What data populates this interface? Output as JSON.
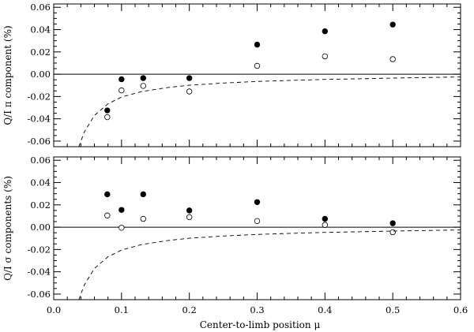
{
  "chart_data": [
    {
      "type": "scatter",
      "ylabel": "Q/I π component (%)",
      "xlim": [
        0.0,
        0.6
      ],
      "ylim": [
        -0.065,
        0.063
      ],
      "yticks": [
        "0.06",
        "0.04",
        "0.02",
        "0.00",
        "-0.02",
        "-0.04",
        "-0.06"
      ],
      "reference_line": 0.0,
      "series": [
        {
          "marker": "filled-circle",
          "x": [
            0.079,
            0.1,
            0.132,
            0.2,
            0.3,
            0.4,
            0.5
          ],
          "y": [
            -0.0325,
            -0.0045,
            -0.0035,
            -0.0035,
            0.0265,
            0.0385,
            0.0445
          ]
        },
        {
          "marker": "open-circle",
          "x": [
            0.079,
            0.1,
            0.132,
            0.2,
            0.3,
            0.4,
            0.5
          ],
          "y": [
            -0.0385,
            -0.0145,
            -0.0105,
            -0.0155,
            0.0075,
            0.016,
            0.0135
          ]
        },
        {
          "marker": "dashed-line",
          "x": [
            0.037,
            0.045,
            0.06,
            0.08,
            0.1,
            0.13,
            0.17,
            0.2,
            0.25,
            0.3,
            0.35,
            0.4,
            0.45,
            0.5,
            0.55,
            0.6
          ],
          "y": [
            -0.065,
            -0.052,
            -0.037,
            -0.0265,
            -0.0205,
            -0.0155,
            -0.0118,
            -0.0099,
            -0.0079,
            -0.0065,
            -0.0055,
            -0.0047,
            -0.0041,
            -0.0035,
            -0.003,
            -0.0025
          ]
        }
      ]
    },
    {
      "type": "scatter",
      "ylabel": "Q/I σ components (%)",
      "xlabel": "Center-to-limb position μ",
      "xlim": [
        0.0,
        0.6
      ],
      "ylim": [
        -0.065,
        0.063
      ],
      "xticks": [
        "0.0",
        "0.1",
        "0.2",
        "0.3",
        "0.4",
        "0.5",
        "0.6"
      ],
      "yticks": [
        "0.06",
        "0.04",
        "0.02",
        "0.00",
        "-0.02",
        "-0.04",
        "-0.06"
      ],
      "reference_line": 0.0,
      "series": [
        {
          "marker": "filled-circle",
          "x": [
            0.079,
            0.1,
            0.132,
            0.2,
            0.3,
            0.4,
            0.5
          ],
          "y": [
            0.0295,
            0.0155,
            0.0295,
            0.015,
            0.0225,
            0.0075,
            0.0035
          ]
        },
        {
          "marker": "open-circle",
          "x": [
            0.079,
            0.1,
            0.132,
            0.2,
            0.3,
            0.4,
            0.5
          ],
          "y": [
            0.0105,
            -0.0005,
            0.0075,
            0.009,
            0.0055,
            0.002,
            -0.0045
          ]
        },
        {
          "marker": "dashed-line",
          "x": [
            0.037,
            0.045,
            0.06,
            0.08,
            0.1,
            0.13,
            0.17,
            0.2,
            0.25,
            0.3,
            0.35,
            0.4,
            0.45,
            0.5,
            0.55,
            0.6
          ],
          "y": [
            -0.065,
            -0.052,
            -0.037,
            -0.0265,
            -0.0205,
            -0.0155,
            -0.0118,
            -0.0099,
            -0.0079,
            -0.0065,
            -0.0055,
            -0.0047,
            -0.0041,
            -0.0035,
            -0.003,
            -0.0025
          ]
        }
      ]
    }
  ]
}
